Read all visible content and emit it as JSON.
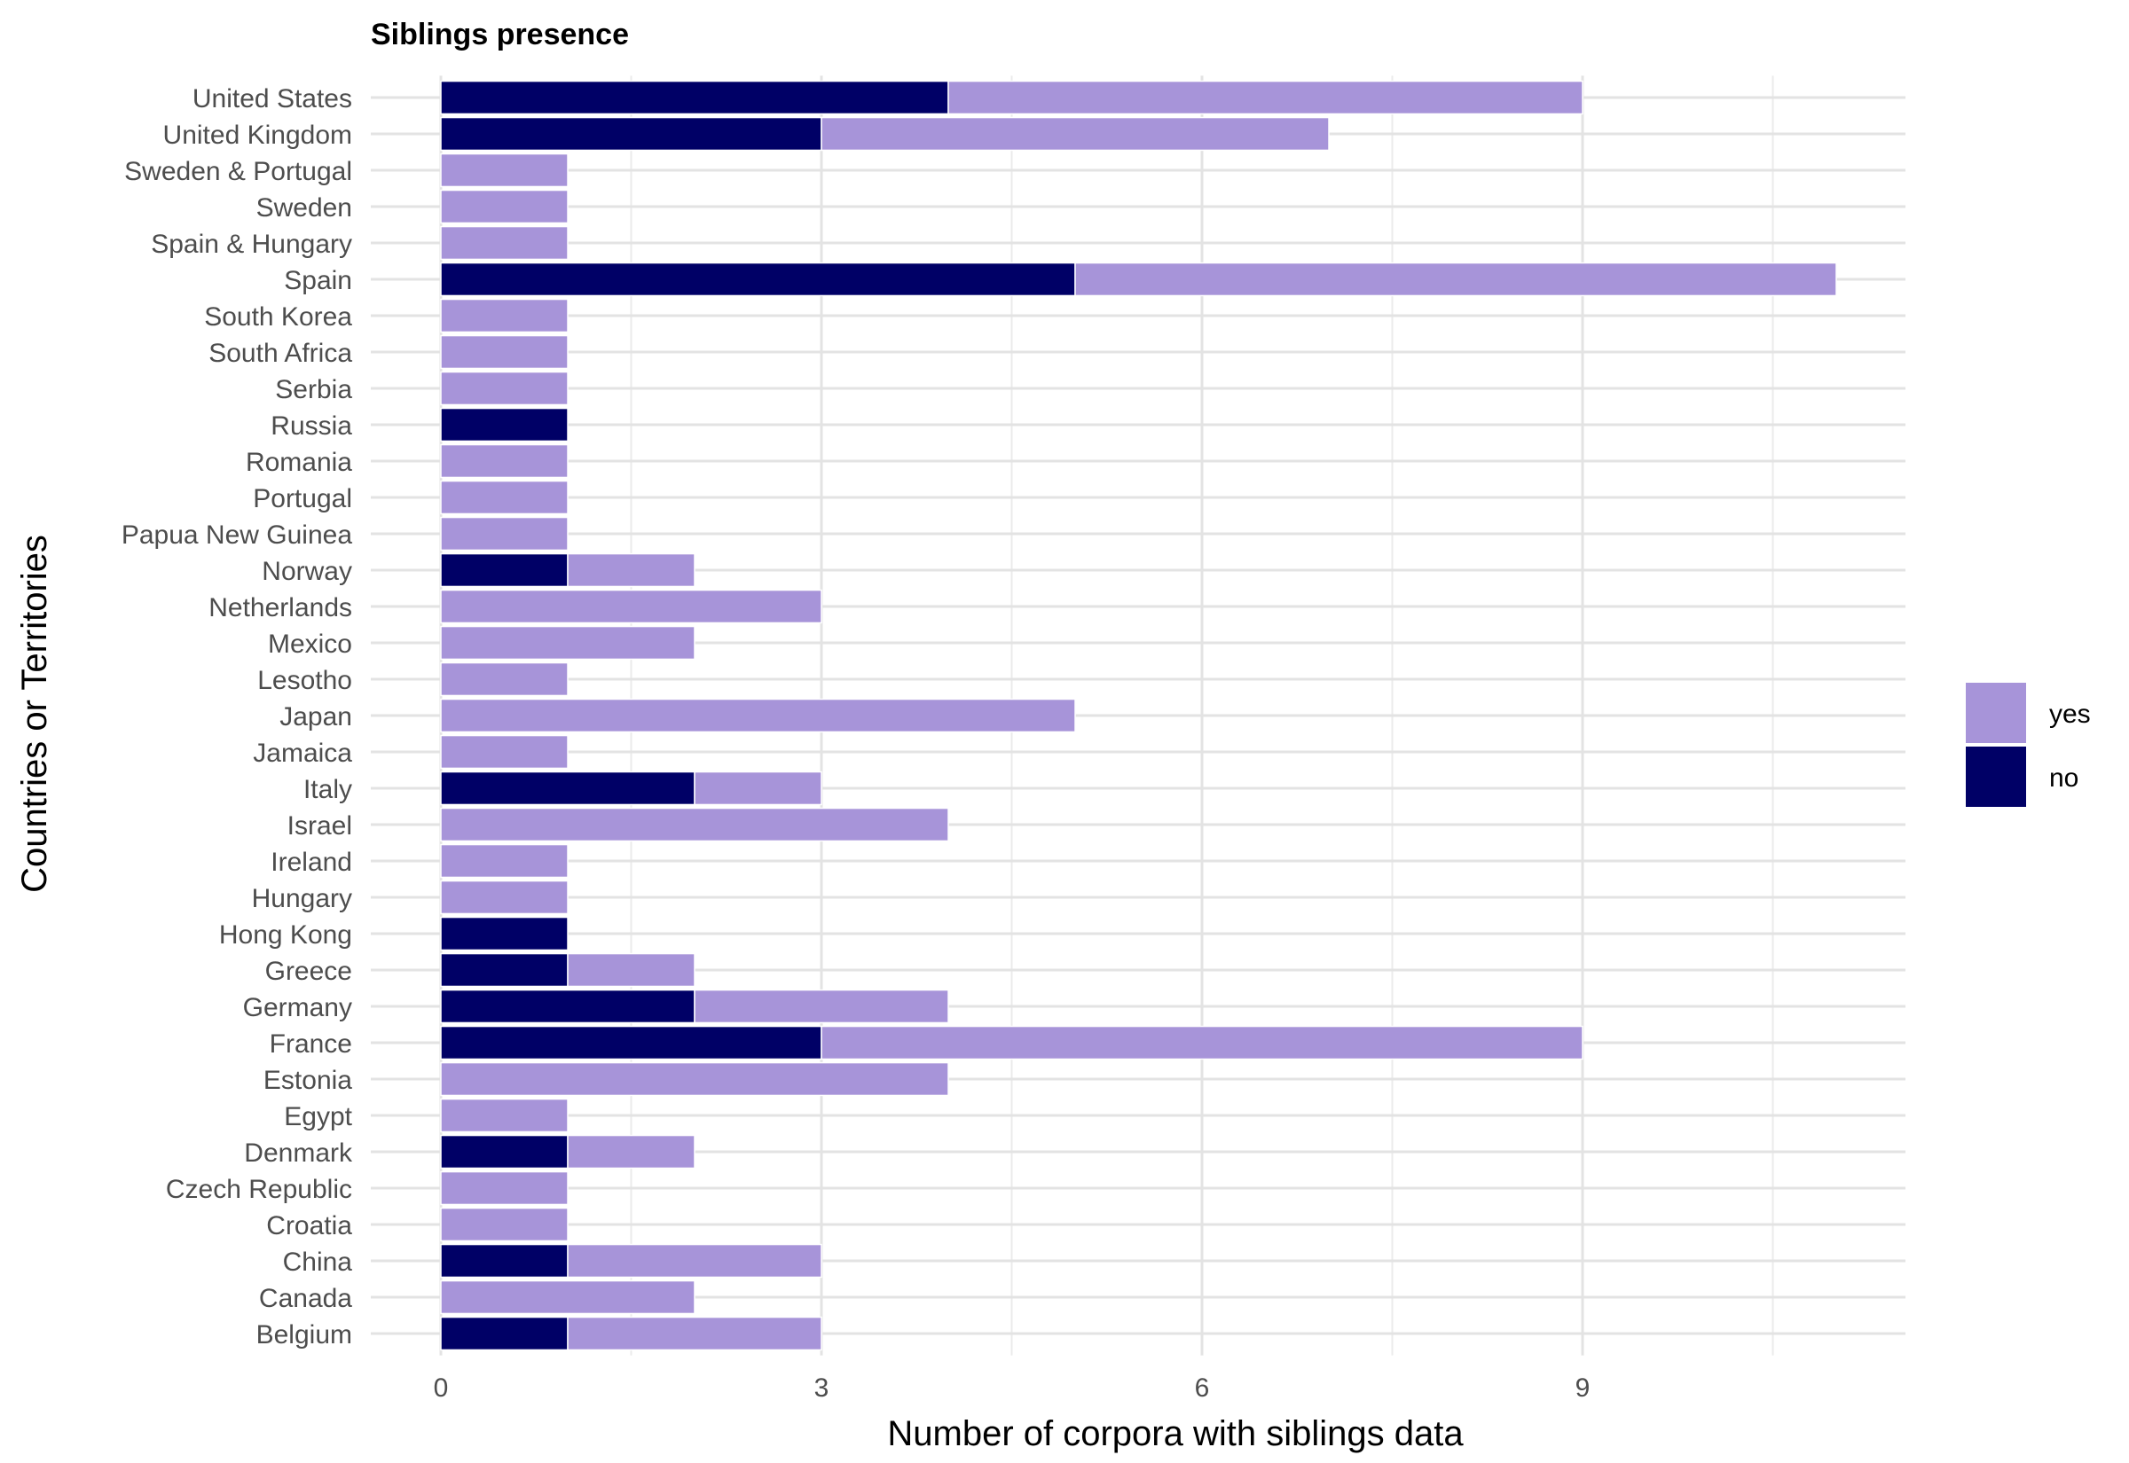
{
  "chart_data": {
    "type": "bar",
    "orientation": "horizontal",
    "stacked": true,
    "title": "Siblings presence",
    "xlabel": "Number of corpora with siblings data",
    "ylabel": "Countries or Territories",
    "xlim": [
      0,
      11.5
    ],
    "xticks": [
      0,
      3,
      6,
      9
    ],
    "grid": true,
    "legend_position": "right",
    "categories": [
      "Belgium",
      "Canada",
      "China",
      "Croatia",
      "Czech Republic",
      "Denmark",
      "Egypt",
      "Estonia",
      "France",
      "Germany",
      "Greece",
      "Hong Kong",
      "Hungary",
      "Ireland",
      "Israel",
      "Italy",
      "Jamaica",
      "Japan",
      "Lesotho",
      "Mexico",
      "Netherlands",
      "Norway",
      "Papua New Guinea",
      "Portugal",
      "Romania",
      "Russia",
      "Serbia",
      "South Africa",
      "South Korea",
      "Spain",
      "Spain & Hungary",
      "Sweden",
      "Sweden & Portugal",
      "United Kingdom",
      "United States"
    ],
    "series": [
      {
        "name": "no",
        "color": "#000066",
        "values": [
          1,
          0,
          1,
          0,
          0,
          1,
          0,
          0,
          3,
          2,
          1,
          1,
          0,
          0,
          0,
          2,
          0,
          0,
          0,
          0,
          0,
          1,
          0,
          0,
          0,
          1,
          0,
          0,
          0,
          5,
          0,
          0,
          0,
          3,
          4
        ]
      },
      {
        "name": "yes",
        "color": "#a794d9",
        "values": [
          2,
          2,
          2,
          1,
          1,
          1,
          1,
          4,
          6,
          2,
          1,
          0,
          1,
          1,
          4,
          1,
          1,
          5,
          1,
          2,
          3,
          1,
          1,
          1,
          1,
          0,
          1,
          1,
          1,
          6,
          1,
          1,
          1,
          4,
          5
        ]
      }
    ],
    "legend_order": [
      "yes",
      "no"
    ]
  }
}
